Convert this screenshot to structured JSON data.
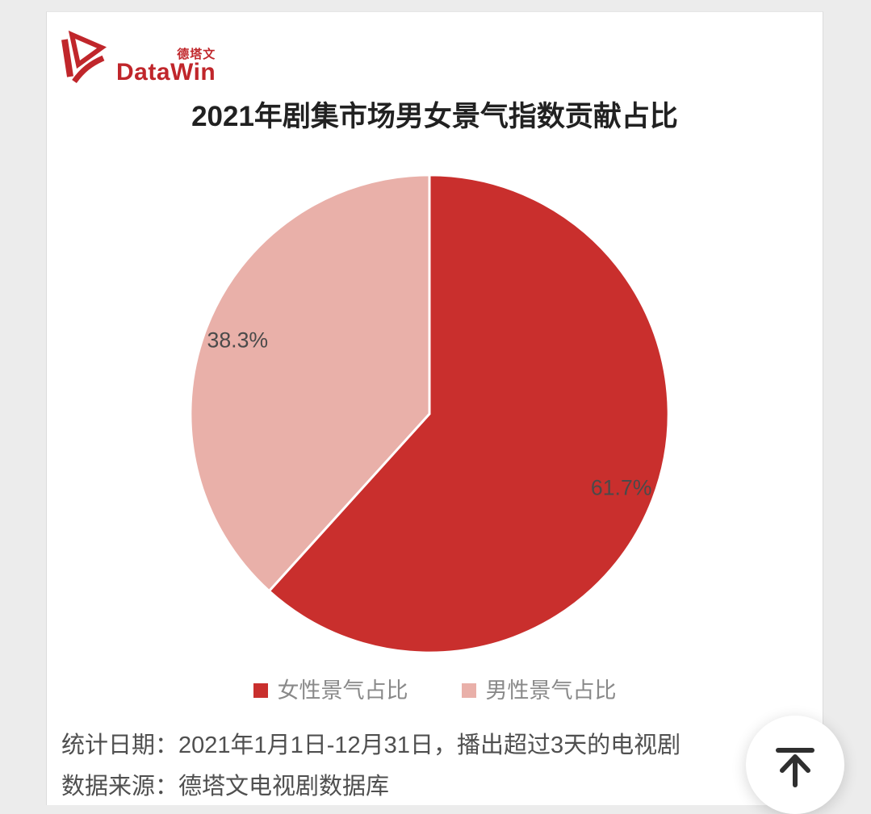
{
  "page": {
    "background_color": "#ececec",
    "card_color": "#ffffff"
  },
  "logo": {
    "brand": "DataWin",
    "brand_cn": "德塔文",
    "color": "#c0262b"
  },
  "chart_data": {
    "type": "pie",
    "title": "2021年剧集市场男女景气指数贡献占比",
    "start_angle_deg": 0,
    "direction": "clockwise",
    "legend_position": "bottom",
    "label_radius_ratio": 0.86,
    "slices": [
      {
        "label": "女性景气占比",
        "value": 61.7,
        "display": "61.7%",
        "color": "#c92f2d"
      },
      {
        "label": "男性景气占比",
        "value": 38.3,
        "display": "38.3%",
        "color": "#e9b0a9"
      }
    ]
  },
  "footer": {
    "line1": "统计日期：2021年1月1日-12月31日，播出超过3天的电视剧",
    "line2": "数据来源：德塔文电视剧数据库"
  },
  "back_to_top": {
    "icon": "arrow-up-to-line"
  }
}
